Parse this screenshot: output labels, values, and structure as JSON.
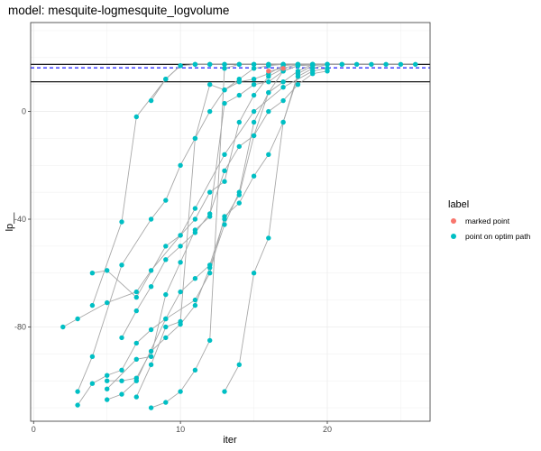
{
  "chart_data": {
    "type": "scatter",
    "title": "model: mesquite-logmesquite_logvolume",
    "xlabel": "iter",
    "ylabel": "lp__",
    "xlim": [
      -0.2,
      27
    ],
    "ylim": [
      -115,
      33
    ],
    "x_ticks": [
      0,
      10,
      20
    ],
    "y_ticks": [
      0,
      -40,
      -80
    ],
    "x_tick_labels": [
      "0",
      "10",
      "20"
    ],
    "y_tick_labels": [
      "0",
      "-40",
      "-80"
    ],
    "grid": true,
    "legend_position": "right",
    "hlines": [
      {
        "y": 17.5,
        "style": "solid",
        "color": "#000000"
      },
      {
        "y": 16.2,
        "style": "dashed",
        "color": "#0000ff"
      },
      {
        "y": 11,
        "style": "solid",
        "color": "#000000"
      }
    ],
    "legend": {
      "title": "label",
      "entries": [
        {
          "label": "marked point",
          "color": "#F8766D"
        },
        {
          "label": "point on optim path",
          "color": "#00BFC4"
        }
      ]
    },
    "series": [
      {
        "label": "point on optim path",
        "points": [
          [
            2,
            -80
          ],
          [
            3,
            -77
          ],
          [
            5,
            -71
          ],
          [
            7,
            -67
          ],
          [
            8,
            -59
          ],
          [
            10,
            -46
          ],
          [
            11,
            -36
          ],
          [
            13,
            -16
          ],
          [
            15,
            0
          ],
          [
            17,
            9
          ],
          [
            19,
            15
          ],
          [
            20,
            16
          ]
        ]
      },
      {
        "label": "point on optim path",
        "points": [
          [
            3,
            -109
          ],
          [
            4,
            -101
          ],
          [
            5,
            -98
          ],
          [
            6,
            -96
          ],
          [
            7,
            -86
          ],
          [
            8,
            -81
          ],
          [
            9,
            -77
          ],
          [
            10,
            -67
          ],
          [
            11,
            -62
          ],
          [
            12,
            -57
          ],
          [
            13,
            -40
          ],
          [
            14,
            -31
          ],
          [
            15,
            -9
          ],
          [
            16,
            7
          ],
          [
            17,
            15
          ],
          [
            18,
            17
          ],
          [
            20,
            17.5
          ]
        ]
      },
      {
        "label": "point on optim path",
        "points": [
          [
            3,
            -104
          ],
          [
            4,
            -91
          ],
          [
            6,
            -57
          ],
          [
            8,
            -40
          ],
          [
            9,
            -33
          ],
          [
            10,
            -20
          ],
          [
            11,
            -10
          ],
          [
            12,
            0
          ],
          [
            13,
            8
          ],
          [
            14,
            12
          ],
          [
            15,
            16
          ],
          [
            16,
            17
          ],
          [
            17,
            17.5
          ],
          [
            18,
            17.5
          ]
        ]
      },
      {
        "label": "point on optim path",
        "points": [
          [
            4,
            -60
          ],
          [
            5,
            -59
          ],
          [
            7,
            -69
          ],
          [
            9,
            -50
          ],
          [
            10,
            -46
          ],
          [
            11,
            -40
          ],
          [
            12,
            -30
          ],
          [
            13,
            -26
          ],
          [
            14,
            -4
          ],
          [
            15,
            6
          ],
          [
            16,
            13
          ],
          [
            17,
            16
          ],
          [
            18,
            17.5
          ],
          [
            19,
            17.5
          ]
        ]
      },
      {
        "label": "point on optim path",
        "points": [
          [
            4,
            -72
          ],
          [
            6,
            -41
          ],
          [
            7,
            -2
          ],
          [
            9,
            12
          ],
          [
            10,
            17
          ],
          [
            11,
            17.5
          ],
          [
            12,
            17.5
          ],
          [
            13,
            17.5
          ],
          [
            14,
            17.5
          ],
          [
            15,
            17.5
          ],
          [
            16,
            17.5
          ],
          [
            17,
            17.5
          ]
        ]
      },
      {
        "label": "point on optim path",
        "points": [
          [
            5,
            -107
          ],
          [
            6,
            -105
          ],
          [
            7,
            -100
          ],
          [
            9,
            -77
          ],
          [
            11,
            -70
          ],
          [
            12,
            -60
          ],
          [
            13,
            -39
          ],
          [
            14,
            -34
          ],
          [
            15,
            -24
          ],
          [
            16,
            -16
          ],
          [
            17,
            -4
          ],
          [
            18,
            14
          ],
          [
            19,
            17
          ],
          [
            20,
            17.5
          ],
          [
            21,
            17.5
          ]
        ]
      },
      {
        "label": "point on optim path",
        "points": [
          [
            5,
            -100
          ],
          [
            6,
            -100
          ],
          [
            7,
            -99
          ],
          [
            8,
            -89
          ],
          [
            9,
            -84
          ],
          [
            10,
            -79
          ],
          [
            11,
            -72
          ],
          [
            12,
            -58
          ],
          [
            13,
            -42
          ],
          [
            14,
            -30
          ],
          [
            15,
            -4
          ],
          [
            16,
            7
          ],
          [
            17,
            11
          ],
          [
            18,
            15
          ],
          [
            19,
            17.5
          ],
          [
            20,
            17.5
          ],
          [
            22,
            17.5
          ],
          [
            24,
            17.5
          ],
          [
            26,
            17.5
          ]
        ]
      },
      {
        "label": "point on optim path",
        "points": [
          [
            5,
            -103
          ],
          [
            7,
            -92
          ],
          [
            8,
            -91
          ],
          [
            9,
            -68
          ],
          [
            10,
            -56
          ],
          [
            11,
            -44
          ],
          [
            12,
            -39
          ],
          [
            13,
            3
          ],
          [
            14,
            6
          ],
          [
            15,
            10
          ],
          [
            16,
            11
          ],
          [
            17,
            15
          ],
          [
            18,
            17
          ],
          [
            19,
            17.5
          ],
          [
            21,
            17.5
          ],
          [
            23,
            17.5
          ],
          [
            25,
            17.5
          ]
        ]
      },
      {
        "label": "point on optim path",
        "points": [
          [
            6,
            -84
          ],
          [
            7,
            -74
          ],
          [
            8,
            -65
          ],
          [
            9,
            -55
          ],
          [
            10,
            -50
          ],
          [
            11,
            -45
          ],
          [
            12,
            -38
          ],
          [
            13,
            -22
          ],
          [
            14,
            -13
          ],
          [
            15,
            -9
          ],
          [
            16,
            0
          ],
          [
            17,
            4
          ],
          [
            18,
            10
          ],
          [
            19,
            14
          ],
          [
            20,
            15
          ]
        ]
      },
      {
        "label": "point on optim path",
        "points": [
          [
            7,
            -106
          ],
          [
            8,
            -94
          ],
          [
            9,
            -80
          ],
          [
            10,
            -78
          ],
          [
            11,
            -10
          ],
          [
            12,
            10
          ],
          [
            13,
            8
          ],
          [
            14,
            11
          ],
          [
            15,
            12
          ],
          [
            16,
            14
          ],
          [
            17,
            17
          ],
          [
            18,
            17.5
          ],
          [
            19,
            17.5
          ]
        ]
      },
      {
        "label": "point on optim path",
        "points": [
          [
            8,
            -110
          ],
          [
            9,
            -108
          ],
          [
            10,
            -104
          ],
          [
            11,
            -96
          ],
          [
            12,
            -85
          ],
          [
            13,
            16
          ],
          [
            14,
            17.5
          ],
          [
            15,
            17.5
          ],
          [
            16,
            17.5
          ],
          [
            17,
            17.5
          ],
          [
            18,
            17.5
          ],
          [
            19,
            17.5
          ]
        ]
      },
      {
        "label": "point on optim path",
        "points": [
          [
            8,
            4
          ],
          [
            9,
            12
          ],
          [
            10,
            17
          ],
          [
            11,
            17.5
          ],
          [
            12,
            17.5
          ],
          [
            13,
            17.5
          ]
        ]
      },
      {
        "label": "point on optim path",
        "points": [
          [
            13,
            -104
          ],
          [
            14,
            -94
          ],
          [
            15,
            -60
          ],
          [
            16,
            -47
          ],
          [
            17,
            -4
          ],
          [
            18,
            13
          ],
          [
            19,
            16
          ],
          [
            20,
            17.5
          ]
        ]
      },
      {
        "label": "marked point",
        "points": [
          [
            16,
            15
          ],
          [
            17,
            16
          ]
        ]
      }
    ]
  }
}
